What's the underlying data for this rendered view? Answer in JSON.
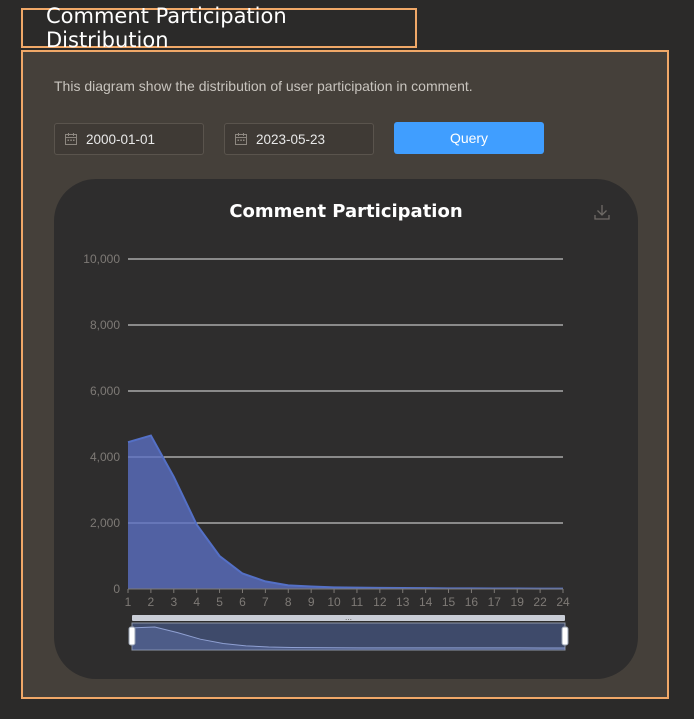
{
  "page": {
    "title": "Comment Participation Distribution",
    "description": "This diagram show the distribution of user participation in comment."
  },
  "filters": {
    "start_date": "2000-01-01",
    "end_date": "2023-05-23",
    "query_label": "Query"
  },
  "icons": {
    "calendar": "calendar-icon",
    "download": "download-icon"
  },
  "colors": {
    "accent_border": "#f0a868",
    "button": "#409eff",
    "series": "#5b6fc4"
  },
  "chart_data": {
    "type": "area",
    "title": "Comment Participation",
    "categories": [
      "1",
      "2",
      "3",
      "4",
      "5",
      "6",
      "7",
      "8",
      "9",
      "10",
      "11",
      "12",
      "13",
      "14",
      "15",
      "16",
      "17",
      "19",
      "22",
      "24"
    ],
    "values": [
      4450,
      4650,
      3400,
      1950,
      1000,
      470,
      230,
      110,
      75,
      50,
      40,
      35,
      30,
      25,
      20,
      20,
      15,
      15,
      10,
      10
    ],
    "xlabel": "",
    "ylabel": "",
    "ylim": [
      0,
      10000
    ],
    "yticks": [
      0,
      2000,
      4000,
      6000,
      8000,
      10000
    ],
    "ytick_labels": [
      "0",
      "2,000",
      "4,000",
      "6,000",
      "8,000",
      "10,000"
    ],
    "grid": true,
    "legend": "none",
    "zoom_range": [
      0,
      1
    ]
  }
}
